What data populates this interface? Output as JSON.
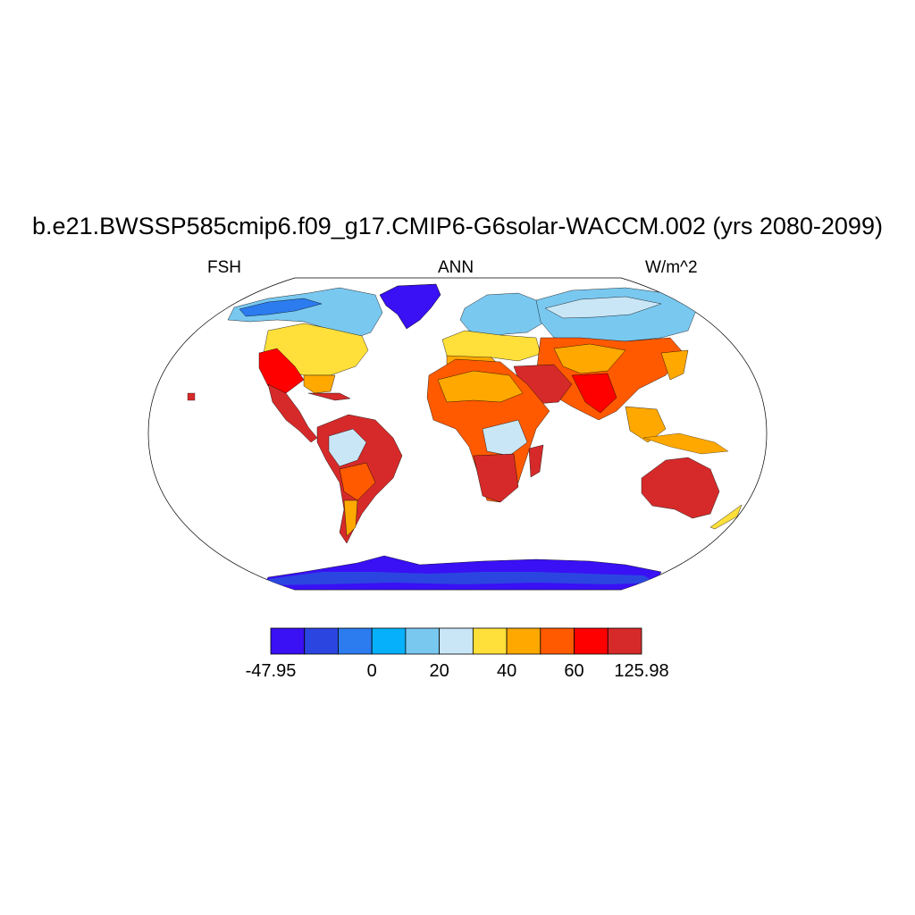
{
  "title": "b.e21.BWSSP585cmip6.f09_g17.CMIP6-G6solar-WACCM.002 (yrs 2080-2099)",
  "left_label": "FSH",
  "center_label": "ANN",
  "right_label": "W/m^2",
  "colorbar": {
    "colors": [
      "#3a10f5",
      "#2b46e0",
      "#2c7cf0",
      "#07b0fa",
      "#79c8f0",
      "#c9e6f7",
      "#ffdf3a",
      "#ffa800",
      "#ff5a00",
      "#ff0000",
      "#d62a2a"
    ],
    "labels": [
      {
        "text": "-47.95",
        "index": 0
      },
      {
        "text": "0",
        "index": 3
      },
      {
        "text": "20",
        "index": 5
      },
      {
        "text": "40",
        "index": 7
      },
      {
        "text": "60",
        "index": 9
      },
      {
        "text": "125.98",
        "index": 11
      }
    ]
  }
}
